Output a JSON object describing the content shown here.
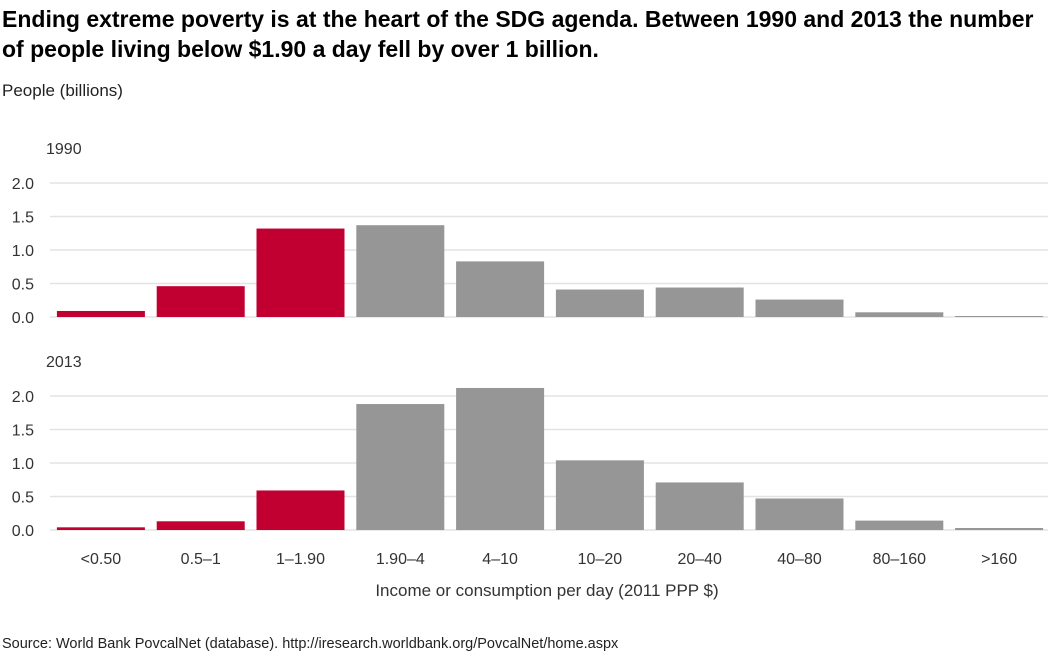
{
  "title": "Ending extreme poverty is at the heart of the SDG agenda. Between 1990 and 2013 the number of people living below $1.90 a day fell by over 1 billion.",
  "source": "Source: World Bank PovcalNet (database). http://iresearch.worldbank.org/PovcalNet/home.aspx",
  "colors": {
    "poor": "#c10031",
    "nonpoor": "#969696",
    "grid": "#e3e3e3"
  },
  "chart_data": {
    "type": "bar",
    "ylabel": "People (billions)",
    "xlabel": "Income or consumption per day (2011 PPP $)",
    "categories": [
      "<0.50",
      "0.5–1",
      "1–1.90",
      "1.90–4",
      "4–10",
      "10–20",
      "20–40",
      "40–80",
      "80–160",
      ">160"
    ],
    "highlight_count": 3,
    "ylim": [
      0,
      2.0
    ],
    "yticks": [
      "0.0",
      "0.5",
      "1.0",
      "1.5",
      "2.0"
    ],
    "grid": true,
    "panels": [
      {
        "name": "1990",
        "values": [
          0.09,
          0.46,
          1.32,
          1.37,
          0.83,
          0.41,
          0.44,
          0.26,
          0.07,
          0.01
        ]
      },
      {
        "name": "2013",
        "values": [
          0.04,
          0.13,
          0.59,
          1.88,
          2.12,
          1.04,
          0.71,
          0.47,
          0.14,
          0.03
        ]
      }
    ]
  }
}
